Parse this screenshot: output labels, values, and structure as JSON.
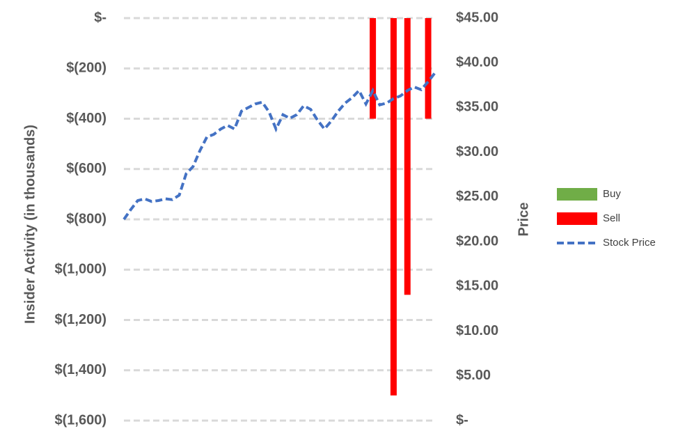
{
  "chart_data": {
    "type": "bar-line",
    "y_axis_label": "Insider Activity (in thousands)",
    "y2_axis_label": "Price",
    "categories": [
      null,
      null,
      null,
      null,
      null,
      null,
      null,
      null,
      null,
      null,
      null,
      null,
      null,
      null,
      null,
      null,
      null,
      null,
      null,
      null,
      null,
      null,
      null,
      null,
      null,
      null,
      null,
      null,
      null,
      null,
      null,
      null,
      null,
      null,
      null,
      null,
      null,
      null,
      null,
      null,
      null,
      null,
      null,
      null,
      null,
      null
    ],
    "ylim": [
      -1600,
      0
    ],
    "yticks": [
      {
        "value": 0,
        "label": "$-"
      },
      {
        "value": -200,
        "label": "$(200)"
      },
      {
        "value": -400,
        "label": "$(400)"
      },
      {
        "value": -600,
        "label": "$(600)"
      },
      {
        "value": -800,
        "label": "$(800)"
      },
      {
        "value": -1000,
        "label": "$(1,000)"
      },
      {
        "value": -1200,
        "label": "$(1,200)"
      },
      {
        "value": -1400,
        "label": "$(1,400)"
      },
      {
        "value": -1600,
        "label": "$(1,600)"
      }
    ],
    "y2lim": [
      0,
      45
    ],
    "y2ticks": [
      {
        "value": 45,
        "label": "$45.00"
      },
      {
        "value": 40,
        "label": "$40.00"
      },
      {
        "value": 35,
        "label": "$35.00"
      },
      {
        "value": 30,
        "label": "$30.00"
      },
      {
        "value": 25,
        "label": "$25.00"
      },
      {
        "value": 20,
        "label": "$20.00"
      },
      {
        "value": 15,
        "label": "$15.00"
      },
      {
        "value": 10,
        "label": "$10.00"
      },
      {
        "value": 5,
        "label": "$5.00"
      },
      {
        "value": 0,
        "label": "$-"
      }
    ],
    "grid": true,
    "legend": "right",
    "series": [
      {
        "name": "Buy",
        "color": "#70ad47",
        "kind": "bar",
        "values": [
          null,
          null,
          null,
          null,
          null,
          null,
          null,
          null,
          null,
          null,
          null,
          null,
          null,
          null,
          null,
          null,
          null,
          null,
          null,
          null,
          null,
          null,
          null,
          null,
          null,
          null,
          null,
          null,
          null,
          null,
          null,
          null,
          null,
          null,
          null,
          null,
          null,
          null,
          null,
          null,
          null,
          null,
          null,
          null,
          null,
          null
        ]
      },
      {
        "name": "Sell",
        "color": "#ff0000",
        "kind": "bar",
        "values": [
          null,
          null,
          null,
          null,
          null,
          null,
          null,
          null,
          null,
          null,
          null,
          null,
          null,
          null,
          null,
          null,
          null,
          null,
          null,
          null,
          null,
          null,
          null,
          null,
          null,
          null,
          null,
          null,
          null,
          null,
          null,
          null,
          null,
          null,
          null,
          null,
          -400,
          null,
          null,
          -1500,
          null,
          -1100,
          null,
          null,
          -400,
          null
        ]
      },
      {
        "name": "Stock Price",
        "color": "#4472c4",
        "kind": "line",
        "axis": "y2",
        "values": [
          22.5,
          23.6,
          24.6,
          24.8,
          24.5,
          24.6,
          24.8,
          24.7,
          25.2,
          27.6,
          28.4,
          30.2,
          31.7,
          32.0,
          32.6,
          33.0,
          32.6,
          34.6,
          35.0,
          35.4,
          35.6,
          34.5,
          32.6,
          34.2,
          33.8,
          34.2,
          35.2,
          34.8,
          33.6,
          32.6,
          33.5,
          34.6,
          35.5,
          36.1,
          36.9,
          35.4,
          36.9,
          35.3,
          35.5,
          36.0,
          36.3,
          36.9,
          37.3,
          37.0,
          37.9,
          38.9
        ]
      }
    ]
  }
}
